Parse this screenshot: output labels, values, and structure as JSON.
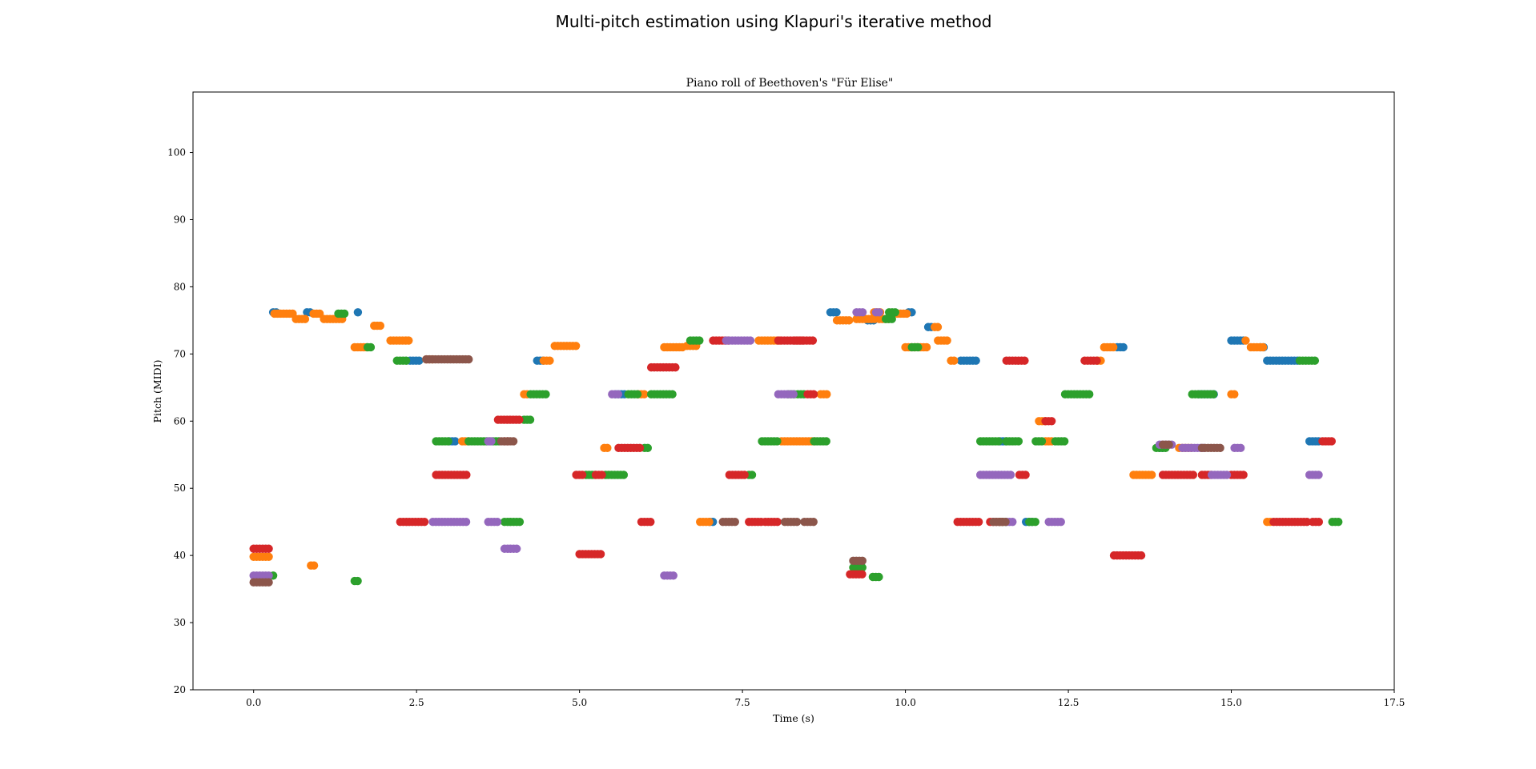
{
  "figure": {
    "suptitle": "Multi-pitch estimation using Klapuri's iterative method"
  },
  "chart_data": {
    "type": "scatter",
    "title": "Piano roll of Beethoven's \"Für Elise\"",
    "xlabel": "Time (s)",
    "ylabel": "Pitch (MIDI)",
    "xlim": [
      -0.93,
      17.5
    ],
    "ylim": [
      20,
      109
    ],
    "xticks": [
      0.0,
      2.5,
      5.0,
      7.5,
      10.0,
      12.5,
      15.0,
      17.5
    ],
    "xtick_labels": [
      "0.0",
      "2.5",
      "5.0",
      "7.5",
      "10.0",
      "12.5",
      "15.0",
      "17.5"
    ],
    "yticks": [
      20,
      30,
      40,
      50,
      60,
      70,
      80,
      90,
      100
    ],
    "ytick_labels": [
      "20",
      "30",
      "40",
      "50",
      "60",
      "70",
      "80",
      "90",
      "100"
    ],
    "grid": false,
    "legend": null,
    "colors": [
      "#1f77b4",
      "#ff7f0e",
      "#2ca02c",
      "#d62728",
      "#9467bd",
      "#8c564b"
    ],
    "time_step": 0.0464,
    "series": [
      {
        "color": "#1f77b4",
        "segments": [
          [
            0.3,
            0.36,
            76.2
          ],
          [
            0.82,
            0.9,
            76.2
          ],
          [
            1.6,
            1.64,
            76.2
          ],
          [
            2.4,
            2.58,
            69
          ],
          [
            3.0,
            3.1,
            57
          ],
          [
            4.35,
            4.48,
            69
          ],
          [
            5.55,
            5.7,
            64
          ],
          [
            7.0,
            7.08,
            45
          ],
          [
            8.85,
            8.98,
            76.2
          ],
          [
            9.42,
            9.55,
            75
          ],
          [
            10.05,
            10.1,
            76.2
          ],
          [
            10.35,
            10.4,
            74
          ],
          [
            10.85,
            11.12,
            69
          ],
          [
            11.45,
            11.55,
            57
          ],
          [
            11.85,
            11.95,
            45
          ],
          [
            13.25,
            13.35,
            71
          ],
          [
            13.9,
            13.95,
            56
          ],
          [
            14.5,
            14.75,
            64
          ],
          [
            15.0,
            15.22,
            72
          ],
          [
            15.45,
            15.5,
            71
          ],
          [
            15.55,
            16.05,
            69
          ],
          [
            16.2,
            16.35,
            57
          ]
        ]
      },
      {
        "color": "#ff7f0e",
        "segments": [
          [
            0.0,
            0.25,
            39.8
          ],
          [
            0.32,
            0.62,
            76
          ],
          [
            0.65,
            0.8,
            75.2
          ],
          [
            0.88,
            0.95,
            38.5
          ],
          [
            0.92,
            1.05,
            76
          ],
          [
            1.08,
            1.4,
            75.2
          ],
          [
            1.55,
            1.75,
            71
          ],
          [
            1.85,
            1.98,
            74.2
          ],
          [
            2.1,
            2.42,
            72
          ],
          [
            2.65,
            2.75,
            69.2
          ],
          [
            3.2,
            3.3,
            57
          ],
          [
            4.15,
            4.2,
            64
          ],
          [
            4.45,
            4.55,
            69
          ],
          [
            4.62,
            4.95,
            71.2
          ],
          [
            5.38,
            5.45,
            56
          ],
          [
            5.9,
            6.0,
            64
          ],
          [
            6.3,
            6.6,
            71
          ],
          [
            6.65,
            6.8,
            71.2
          ],
          [
            6.85,
            7.0,
            45
          ],
          [
            7.75,
            8.1,
            72
          ],
          [
            8.1,
            8.65,
            57
          ],
          [
            8.7,
            8.8,
            64
          ],
          [
            8.95,
            9.15,
            75
          ],
          [
            9.25,
            9.55,
            75.2
          ],
          [
            9.52,
            9.65,
            76.2
          ],
          [
            9.6,
            9.78,
            75.2
          ],
          [
            9.88,
            10.02,
            76
          ],
          [
            10.0,
            10.35,
            71
          ],
          [
            10.45,
            10.52,
            74
          ],
          [
            10.5,
            10.68,
            72
          ],
          [
            10.7,
            10.78,
            69
          ],
          [
            12.05,
            12.15,
            60
          ],
          [
            12.15,
            12.25,
            57
          ],
          [
            12.95,
            13.0,
            69
          ],
          [
            13.05,
            13.2,
            71
          ],
          [
            13.5,
            13.8,
            52
          ],
          [
            14.2,
            14.4,
            56
          ],
          [
            15.0,
            15.08,
            64
          ],
          [
            15.22,
            15.25,
            72
          ],
          [
            15.3,
            15.5,
            71
          ],
          [
            15.55,
            15.6,
            45
          ]
        ]
      },
      {
        "color": "#2ca02c",
        "segments": [
          [
            0.3,
            0.32,
            37
          ],
          [
            1.3,
            1.42,
            76
          ],
          [
            1.55,
            1.62,
            36.2
          ],
          [
            1.75,
            1.8,
            71
          ],
          [
            2.2,
            2.35,
            69
          ],
          [
            2.8,
            3.0,
            57
          ],
          [
            3.3,
            3.8,
            57
          ],
          [
            3.85,
            4.1,
            45
          ],
          [
            4.15,
            4.25,
            60.2
          ],
          [
            4.25,
            4.5,
            64
          ],
          [
            5.1,
            5.25,
            52
          ],
          [
            5.4,
            5.7,
            52
          ],
          [
            5.75,
            5.9,
            64
          ],
          [
            6.0,
            6.05,
            56
          ],
          [
            6.1,
            6.45,
            64
          ],
          [
            6.7,
            6.85,
            72
          ],
          [
            7.6,
            7.65,
            52
          ],
          [
            7.8,
            8.05,
            57
          ],
          [
            8.2,
            8.3,
            64
          ],
          [
            8.35,
            8.45,
            64
          ],
          [
            8.6,
            8.8,
            57
          ],
          [
            9.2,
            9.35,
            38.2
          ],
          [
            9.75,
            9.85,
            76.2
          ],
          [
            9.7,
            9.8,
            75.2
          ],
          [
            9.5,
            9.6,
            36.8
          ],
          [
            10.1,
            10.2,
            71
          ],
          [
            11.15,
            11.45,
            57
          ],
          [
            11.55,
            11.75,
            57
          ],
          [
            11.45,
            11.55,
            45
          ],
          [
            11.9,
            12.0,
            45
          ],
          [
            12.0,
            12.1,
            57
          ],
          [
            12.3,
            12.45,
            57
          ],
          [
            12.45,
            12.85,
            64
          ],
          [
            13.85,
            14.0,
            56
          ],
          [
            14.4,
            14.75,
            64
          ],
          [
            16.05,
            16.32,
            69
          ],
          [
            16.55,
            16.65,
            45
          ]
        ]
      },
      {
        "color": "#d62728",
        "segments": [
          [
            0.0,
            0.25,
            41
          ],
          [
            2.25,
            2.65,
            45
          ],
          [
            2.8,
            3.3,
            52
          ],
          [
            3.75,
            4.1,
            60.2
          ],
          [
            3.85,
            3.9,
            57
          ],
          [
            4.95,
            5.05,
            52
          ],
          [
            5.0,
            5.35,
            40.2
          ],
          [
            5.25,
            5.35,
            52
          ],
          [
            5.6,
            5.95,
            56
          ],
          [
            5.95,
            6.1,
            45
          ],
          [
            6.1,
            6.5,
            68
          ],
          [
            7.05,
            7.3,
            72
          ],
          [
            7.3,
            7.55,
            52
          ],
          [
            7.6,
            7.8,
            45
          ],
          [
            7.85,
            8.05,
            45
          ],
          [
            8.05,
            8.45,
            72
          ],
          [
            8.5,
            8.6,
            64
          ],
          [
            8.3,
            8.6,
            72
          ],
          [
            9.15,
            9.35,
            37.2
          ],
          [
            10.8,
            11.15,
            45
          ],
          [
            11.3,
            11.5,
            45
          ],
          [
            11.75,
            11.85,
            52
          ],
          [
            11.55,
            11.85,
            69
          ],
          [
            12.15,
            12.25,
            60
          ],
          [
            12.75,
            12.95,
            69
          ],
          [
            13.2,
            13.65,
            40
          ],
          [
            13.95,
            14.45,
            52
          ],
          [
            14.55,
            14.7,
            52
          ],
          [
            15.0,
            15.2,
            52
          ],
          [
            15.65,
            16.2,
            45
          ],
          [
            16.25,
            16.35,
            45
          ],
          [
            16.4,
            16.55,
            57
          ]
        ]
      },
      {
        "color": "#9467bd",
        "segments": [
          [
            0.0,
            0.25,
            37
          ],
          [
            2.75,
            3.3,
            45
          ],
          [
            3.6,
            3.75,
            45
          ],
          [
            3.85,
            4.05,
            41
          ],
          [
            3.6,
            3.65,
            57
          ],
          [
            5.5,
            5.6,
            64
          ],
          [
            6.3,
            6.45,
            37
          ],
          [
            7.25,
            7.65,
            72
          ],
          [
            8.05,
            8.3,
            64
          ],
          [
            9.25,
            9.35,
            76.2
          ],
          [
            9.55,
            9.6,
            76.2
          ],
          [
            11.15,
            11.65,
            52
          ],
          [
            11.55,
            11.65,
            45
          ],
          [
            12.2,
            12.4,
            45
          ],
          [
            13.9,
            14.1,
            56.5
          ],
          [
            14.25,
            14.6,
            56
          ],
          [
            14.7,
            14.95,
            52
          ],
          [
            15.05,
            15.15,
            56
          ],
          [
            16.2,
            16.35,
            52
          ]
        ]
      },
      {
        "color": "#8c564b",
        "segments": [
          [
            0.0,
            0.25,
            36
          ],
          [
            2.65,
            3.3,
            69.2
          ],
          [
            3.8,
            4.0,
            57
          ],
          [
            7.2,
            7.4,
            45
          ],
          [
            8.15,
            8.35,
            45
          ],
          [
            8.45,
            8.6,
            45
          ],
          [
            9.2,
            9.35,
            39.2
          ],
          [
            11.35,
            11.55,
            45
          ],
          [
            13.95,
            14.05,
            56.5
          ],
          [
            14.55,
            14.85,
            56
          ]
        ]
      }
    ]
  }
}
